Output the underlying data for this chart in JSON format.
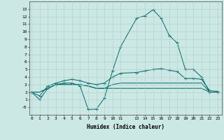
{
  "xlabel": "Humidex (Indice chaleur)",
  "background_color": "#cce8e4",
  "grid_color": "#b0cccc",
  "line_color": "#006666",
  "x_values": [
    0,
    1,
    2,
    3,
    4,
    5,
    6,
    7,
    8,
    9,
    10,
    11,
    13,
    14,
    15,
    16,
    17,
    18,
    19,
    20,
    21,
    22,
    23
  ],
  "series1": [
    2,
    1,
    2.5,
    3,
    3.2,
    3.2,
    2.8,
    -0.3,
    -0.25,
    1.2,
    4.8,
    8.0,
    11.8,
    12.1,
    12.9,
    11.8,
    9.5,
    8.5,
    5.0,
    5.0,
    4.0,
    2.0,
    2.0
  ],
  "series2": [
    2,
    1.5,
    2.8,
    3.2,
    3.5,
    3.7,
    3.5,
    3.2,
    3.0,
    3.2,
    4.0,
    4.5,
    4.6,
    4.8,
    5.0,
    5.1,
    4.9,
    4.7,
    3.8,
    3.8,
    3.7,
    2.2,
    2.1
  ],
  "series3": [
    2,
    2,
    2.5,
    3.0,
    3.0,
    3.0,
    3.0,
    2.8,
    2.5,
    2.5,
    2.5,
    2.5,
    2.5,
    2.5,
    2.5,
    2.5,
    2.5,
    2.5,
    2.5,
    2.5,
    2.5,
    2.0,
    2.0
  ],
  "series4": [
    2,
    2,
    2.5,
    3.0,
    3.0,
    3.0,
    3.0,
    2.8,
    2.5,
    2.5,
    3.0,
    3.2,
    3.2,
    3.2,
    3.2,
    3.2,
    3.2,
    3.2,
    3.2,
    3.2,
    3.2,
    2.0,
    2.0
  ],
  "ylim": [
    -1,
    14
  ],
  "xlim": [
    -0.3,
    23.5
  ],
  "ytick_vals": [
    0,
    1,
    2,
    3,
    4,
    5,
    6,
    7,
    8,
    9,
    10,
    11,
    12,
    13
  ],
  "ytick_labels": [
    "-0",
    "1",
    "2",
    "3",
    "4",
    "5",
    "6",
    "7",
    "8",
    "9",
    "10",
    "11",
    "12",
    "13"
  ],
  "xticks": [
    0,
    1,
    2,
    3,
    4,
    5,
    6,
    7,
    8,
    9,
    10,
    11,
    13,
    14,
    15,
    16,
    17,
    18,
    19,
    20,
    21,
    22,
    23
  ]
}
